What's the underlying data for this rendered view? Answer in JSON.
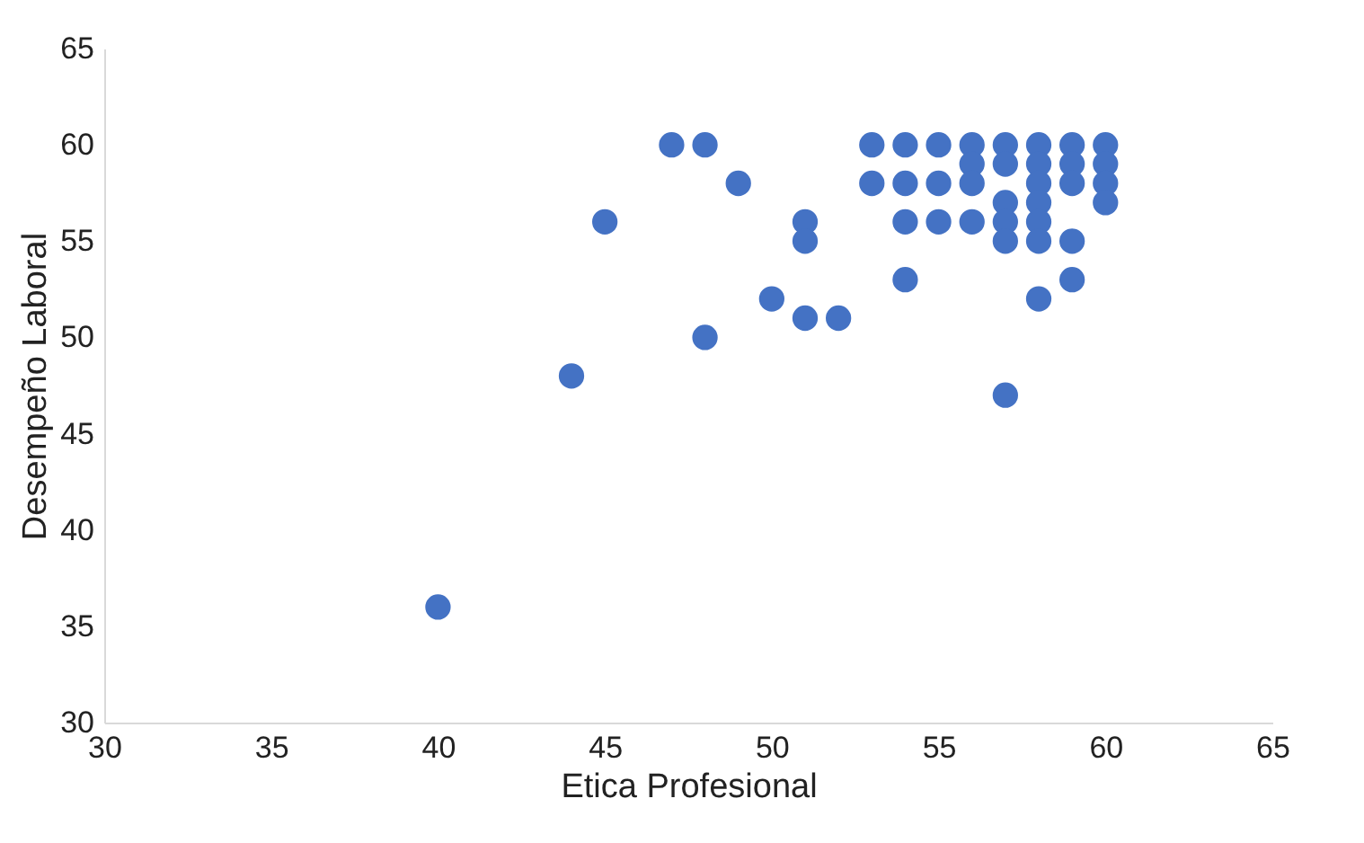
{
  "chart_data": {
    "type": "scatter",
    "xlabel": "Etica Profesional",
    "ylabel": "Desempeño Laboral",
    "x": [
      40,
      44,
      45,
      47,
      48,
      48,
      49,
      50,
      51,
      51,
      51,
      52,
      53,
      53,
      54,
      54,
      54,
      54,
      55,
      55,
      55,
      56,
      56,
      56,
      56,
      57,
      57,
      57,
      57,
      57,
      57,
      58,
      58,
      58,
      58,
      58,
      58,
      58,
      59,
      59,
      59,
      59,
      59,
      60,
      60,
      60,
      60
    ],
    "values": [
      36,
      48,
      56,
      60,
      60,
      50,
      58,
      52,
      56,
      55,
      51,
      51,
      60,
      58,
      60,
      58,
      56,
      53,
      60,
      58,
      56,
      60,
      59,
      58,
      56,
      60,
      59,
      57,
      56,
      55,
      47,
      60,
      59,
      58,
      57,
      56,
      55,
      52,
      60,
      59,
      58,
      55,
      53,
      60,
      59,
      58,
      57
    ],
    "color": "#4472c4",
    "marker": "circle",
    "xlim": [
      30,
      65
    ],
    "xticks": [
      30,
      35,
      40,
      45,
      50,
      55,
      60,
      65
    ],
    "ylim": [
      30,
      65
    ],
    "yticks": [
      30,
      35,
      40,
      45,
      50,
      55,
      60,
      65
    ],
    "grid": false,
    "legend": false
  }
}
